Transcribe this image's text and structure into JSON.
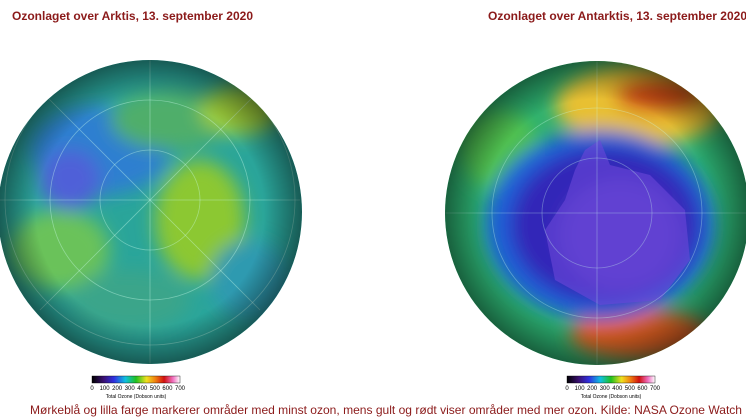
{
  "panels": [
    {
      "title": "Ozonlaget over Arktis, 13. september 2020",
      "colorbar": {
        "ticks": [
          0,
          100,
          200,
          300,
          400,
          500,
          600,
          700
        ],
        "label": "Total Ozone (Dobson units)"
      }
    },
    {
      "title": "Ozonlaget over Antarktis, 13. september 2020",
      "colorbar": {
        "ticks": [
          0,
          100,
          200,
          300,
          400,
          500,
          600,
          700
        ],
        "label": "Total Ozone (Dobson units)"
      }
    }
  ],
  "caption": "Mørkeblå og lilla farge markerer områder med minst ozon, mens gult og rødt viser områder med mer ozon. Kilde: NASA Ozone Watch"
}
